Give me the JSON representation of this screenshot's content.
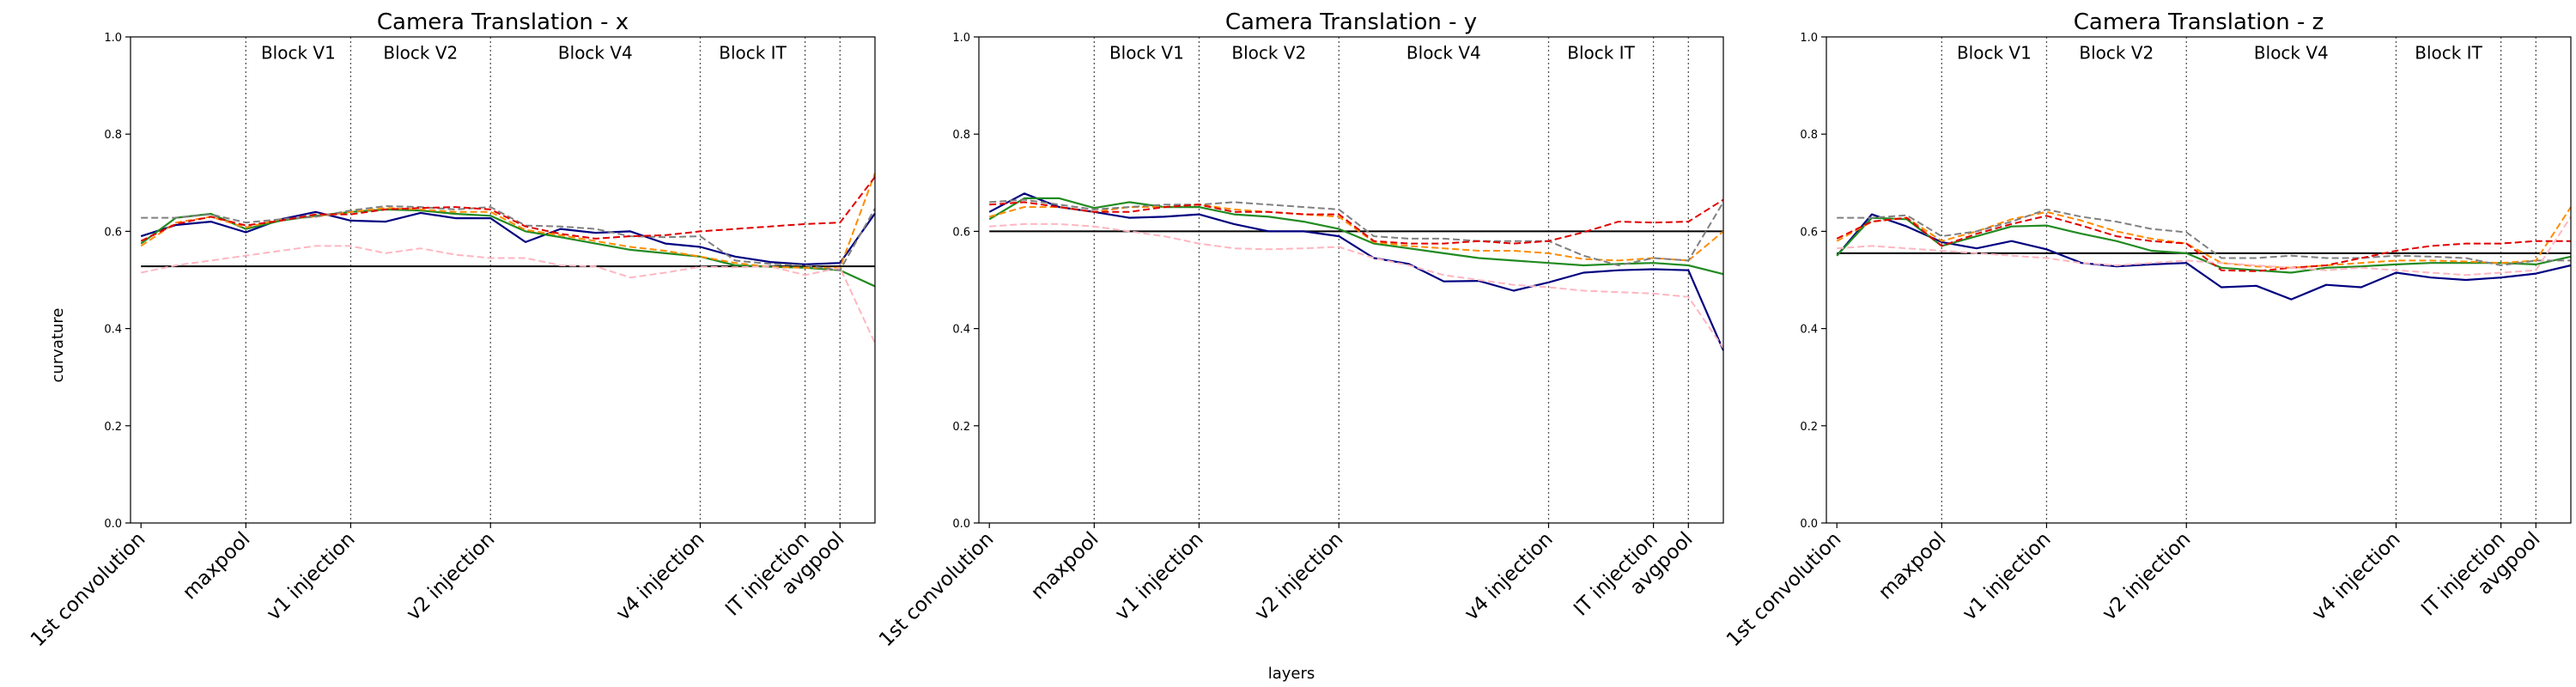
{
  "figure": {
    "xlabel": "layers",
    "ylabel": "curvature"
  },
  "chart_data": [
    {
      "type": "line",
      "title": "Camera Translation - x",
      "ylim": [
        0.0,
        1.0
      ],
      "yticks": [
        "0.0",
        "0.2",
        "0.4",
        "0.6",
        "0.8",
        "1.0"
      ],
      "grid": false,
      "x": [
        0,
        1,
        2,
        3,
        4,
        5,
        6,
        7,
        8,
        9,
        10,
        11,
        12,
        13,
        14,
        15,
        16,
        17,
        18,
        19,
        20,
        21
      ],
      "xlim": [
        -0.3,
        21.0
      ],
      "xtick_labels": [
        {
          "x": 0,
          "label": "1st convolution"
        },
        {
          "x": 3,
          "label": "maxpool"
        },
        {
          "x": 6,
          "label": "v1 injection"
        },
        {
          "x": 10,
          "label": "v2 injection"
        },
        {
          "x": 16,
          "label": "v4 injection"
        },
        {
          "x": 19,
          "label": "IT injection"
        },
        {
          "x": 20,
          "label": "avgpool"
        }
      ],
      "block_lines": [
        3,
        6,
        10,
        16,
        19,
        20
      ],
      "block_labels": [
        {
          "x": 4.5,
          "label": "Block V1"
        },
        {
          "x": 8,
          "label": "Block V2"
        },
        {
          "x": 13,
          "label": "Block V4"
        },
        {
          "x": 17.5,
          "label": "Block IT"
        }
      ],
      "baseline": 0.528,
      "series": [
        {
          "color": "#000080",
          "style": "solid",
          "values": [
            0.59,
            0.613,
            0.62,
            0.598,
            0.625,
            0.64,
            0.622,
            0.62,
            0.638,
            0.627,
            0.627,
            0.578,
            0.605,
            0.597,
            0.6,
            0.575,
            0.568,
            0.548,
            0.537,
            0.532,
            0.535,
            0.637
          ]
        },
        {
          "color": "#228B22",
          "style": "solid",
          "values": [
            0.575,
            0.628,
            0.636,
            0.605,
            0.622,
            0.632,
            0.64,
            0.645,
            0.643,
            0.636,
            0.632,
            0.6,
            0.588,
            0.575,
            0.562,
            0.555,
            0.548,
            0.53,
            0.527,
            0.525,
            0.52,
            0.487
          ]
        },
        {
          "color": "#FF8C00",
          "style": "dashed",
          "values": [
            0.57,
            0.618,
            0.63,
            0.608,
            0.625,
            0.63,
            0.64,
            0.648,
            0.645,
            0.64,
            0.64,
            0.603,
            0.592,
            0.58,
            0.568,
            0.56,
            0.548,
            0.535,
            0.527,
            0.525,
            0.525,
            0.72
          ]
        },
        {
          "color": "#808080",
          "style": "dashed",
          "values": [
            0.628,
            0.628,
            0.635,
            0.618,
            0.625,
            0.63,
            0.643,
            0.652,
            0.65,
            0.645,
            0.65,
            0.612,
            0.61,
            0.605,
            0.59,
            0.588,
            0.59,
            0.54,
            0.533,
            0.53,
            0.52,
            0.647
          ]
        },
        {
          "color": "#E00000",
          "style": "dashed",
          "values": [
            0.58,
            0.615,
            0.63,
            0.612,
            0.622,
            0.635,
            0.635,
            0.645,
            0.648,
            0.65,
            0.645,
            0.61,
            0.595,
            0.585,
            0.59,
            0.592,
            0.6,
            0.605,
            0.61,
            0.615,
            0.618,
            0.712
          ]
        },
        {
          "color": "#FFB6C1",
          "style": "dashed",
          "values": [
            0.515,
            0.53,
            0.54,
            0.55,
            0.56,
            0.57,
            0.57,
            0.555,
            0.565,
            0.552,
            0.545,
            0.545,
            0.53,
            0.528,
            0.505,
            0.515,
            0.527,
            0.526,
            0.528,
            0.51,
            0.525,
            0.37
          ]
        }
      ]
    },
    {
      "type": "line",
      "title": "Camera Translation - y",
      "ylim": [
        0.0,
        1.0
      ],
      "yticks": [
        "0.0",
        "0.2",
        "0.4",
        "0.6",
        "0.8",
        "1.0"
      ],
      "grid": false,
      "x": [
        0,
        1,
        2,
        3,
        4,
        5,
        6,
        7,
        8,
        9,
        10,
        11,
        12,
        13,
        14,
        15,
        16,
        17,
        18,
        19,
        20,
        21
      ],
      "xlim": [
        -0.3,
        21.0
      ],
      "xtick_labels": [
        {
          "x": 0,
          "label": "1st convolution"
        },
        {
          "x": 3,
          "label": "maxpool"
        },
        {
          "x": 6,
          "label": "v1 injection"
        },
        {
          "x": 10,
          "label": "v2 injection"
        },
        {
          "x": 16,
          "label": "v4 injection"
        },
        {
          "x": 19,
          "label": "IT injection"
        },
        {
          "x": 20,
          "label": "avgpool"
        }
      ],
      "block_lines": [
        3,
        6,
        10,
        16,
        19,
        20
      ],
      "block_labels": [
        {
          "x": 4.5,
          "label": "Block V1"
        },
        {
          "x": 8,
          "label": "Block V2"
        },
        {
          "x": 13,
          "label": "Block V4"
        },
        {
          "x": 17.5,
          "label": "Block IT"
        }
      ],
      "baseline": 0.6,
      "series": [
        {
          "color": "#000080",
          "style": "solid",
          "values": [
            0.64,
            0.678,
            0.65,
            0.64,
            0.628,
            0.63,
            0.635,
            0.615,
            0.6,
            0.6,
            0.59,
            0.545,
            0.533,
            0.497,
            0.498,
            0.478,
            0.495,
            0.515,
            0.52,
            0.522,
            0.52,
            0.355
          ]
        },
        {
          "color": "#228B22",
          "style": "solid",
          "values": [
            0.625,
            0.668,
            0.668,
            0.648,
            0.66,
            0.65,
            0.65,
            0.635,
            0.63,
            0.62,
            0.605,
            0.575,
            0.565,
            0.555,
            0.545,
            0.54,
            0.535,
            0.53,
            0.533,
            0.535,
            0.53,
            0.512
          ]
        },
        {
          "color": "#FF8C00",
          "style": "dashed",
          "values": [
            0.63,
            0.65,
            0.65,
            0.64,
            0.65,
            0.65,
            0.655,
            0.645,
            0.64,
            0.635,
            0.63,
            0.578,
            0.57,
            0.565,
            0.56,
            0.56,
            0.555,
            0.543,
            0.54,
            0.545,
            0.54,
            0.6
          ]
        },
        {
          "color": "#808080",
          "style": "dashed",
          "values": [
            0.66,
            0.665,
            0.655,
            0.645,
            0.65,
            0.655,
            0.655,
            0.66,
            0.655,
            0.65,
            0.645,
            0.59,
            0.585,
            0.585,
            0.58,
            0.58,
            0.58,
            0.55,
            0.53,
            0.545,
            0.54,
            0.66
          ]
        },
        {
          "color": "#E00000",
          "style": "dashed",
          "values": [
            0.655,
            0.66,
            0.65,
            0.64,
            0.64,
            0.65,
            0.655,
            0.64,
            0.64,
            0.635,
            0.635,
            0.58,
            0.575,
            0.575,
            0.58,
            0.575,
            0.58,
            0.598,
            0.62,
            0.618,
            0.62,
            0.665
          ]
        },
        {
          "color": "#FFB6C1",
          "style": "dashed",
          "values": [
            0.61,
            0.615,
            0.615,
            0.61,
            0.6,
            0.59,
            0.575,
            0.565,
            0.563,
            0.565,
            0.568,
            0.545,
            0.53,
            0.51,
            0.5,
            0.49,
            0.485,
            0.478,
            0.475,
            0.472,
            0.465,
            0.36
          ]
        }
      ]
    },
    {
      "type": "line",
      "title": "Camera Translation - z",
      "ylim": [
        0.0,
        1.0
      ],
      "yticks": [
        "0.0",
        "0.2",
        "0.4",
        "0.6",
        "0.8",
        "1.0"
      ],
      "grid": false,
      "x": [
        0,
        1,
        2,
        3,
        4,
        5,
        6,
        7,
        8,
        9,
        10,
        11,
        12,
        13,
        14,
        15,
        16,
        17,
        18,
        19,
        20,
        21
      ],
      "xlim": [
        -0.3,
        21.0
      ],
      "xtick_labels": [
        {
          "x": 0,
          "label": "1st convolution"
        },
        {
          "x": 3,
          "label": "maxpool"
        },
        {
          "x": 6,
          "label": "v1 injection"
        },
        {
          "x": 10,
          "label": "v2 injection"
        },
        {
          "x": 16,
          "label": "v4 injection"
        },
        {
          "x": 19,
          "label": "IT injection"
        },
        {
          "x": 20,
          "label": "avgpool"
        }
      ],
      "block_lines": [
        3,
        6,
        10,
        16,
        19,
        20
      ],
      "block_labels": [
        {
          "x": 4.5,
          "label": "Block V1"
        },
        {
          "x": 8,
          "label": "Block V2"
        },
        {
          "x": 13,
          "label": "Block V4"
        },
        {
          "x": 17.5,
          "label": "Block IT"
        }
      ],
      "baseline": 0.555,
      "series": [
        {
          "color": "#000080",
          "style": "solid",
          "values": [
            0.55,
            0.635,
            0.61,
            0.578,
            0.565,
            0.58,
            0.563,
            0.535,
            0.528,
            0.532,
            0.535,
            0.485,
            0.488,
            0.46,
            0.49,
            0.485,
            0.515,
            0.505,
            0.5,
            0.505,
            0.513,
            0.53
          ]
        },
        {
          "color": "#228B22",
          "style": "solid",
          "values": [
            0.55,
            0.628,
            0.625,
            0.57,
            0.59,
            0.61,
            0.612,
            0.595,
            0.58,
            0.56,
            0.555,
            0.525,
            0.52,
            0.515,
            0.525,
            0.528,
            0.532,
            0.535,
            0.535,
            0.535,
            0.532,
            0.548
          ]
        },
        {
          "color": "#FF8C00",
          "style": "dashed",
          "values": [
            0.58,
            0.62,
            0.628,
            0.58,
            0.6,
            0.625,
            0.64,
            0.622,
            0.6,
            0.585,
            0.575,
            0.535,
            0.528,
            0.525,
            0.53,
            0.535,
            0.54,
            0.54,
            0.538,
            0.535,
            0.54,
            0.65
          ]
        },
        {
          "color": "#808080",
          "style": "dashed",
          "values": [
            0.628,
            0.628,
            0.633,
            0.59,
            0.6,
            0.62,
            0.645,
            0.63,
            0.62,
            0.605,
            0.598,
            0.545,
            0.545,
            0.55,
            0.545,
            0.545,
            0.55,
            0.548,
            0.545,
            0.53,
            0.54,
            0.54
          ]
        },
        {
          "color": "#E00000",
          "style": "dashed",
          "values": [
            0.585,
            0.62,
            0.628,
            0.57,
            0.595,
            0.615,
            0.632,
            0.612,
            0.59,
            0.58,
            0.575,
            0.52,
            0.518,
            0.525,
            0.53,
            0.545,
            0.56,
            0.57,
            0.575,
            0.575,
            0.58,
            0.58
          ]
        },
        {
          "color": "#FFB6C1",
          "style": "dashed",
          "values": [
            0.565,
            0.57,
            0.565,
            0.56,
            0.555,
            0.55,
            0.545,
            0.535,
            0.53,
            0.535,
            0.54,
            0.535,
            0.53,
            0.525,
            0.52,
            0.525,
            0.52,
            0.515,
            0.51,
            0.515,
            0.52,
            0.63
          ]
        }
      ]
    }
  ]
}
